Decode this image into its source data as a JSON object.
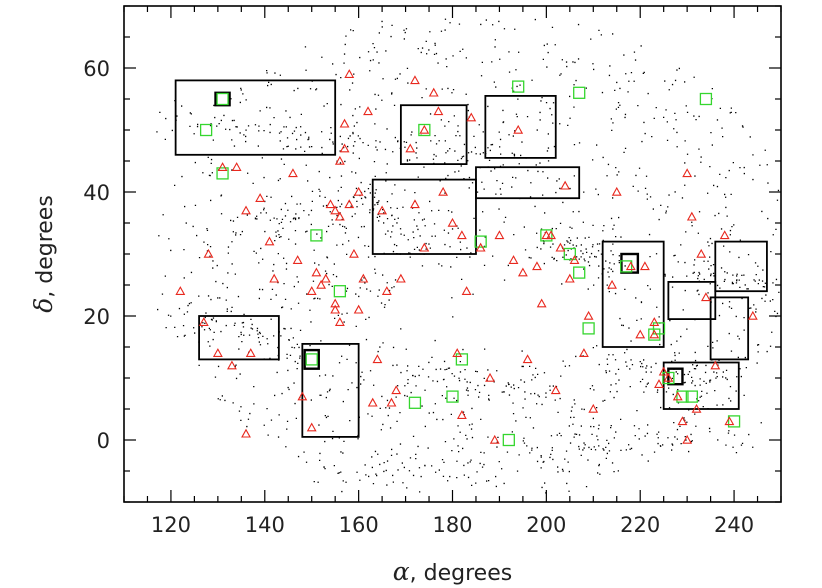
{
  "chart_data": {
    "type": "scatter",
    "xlabel_symbol": "α",
    "xlabel_unit": ", degrees",
    "ylabel_symbol": "δ",
    "ylabel_unit": ", degrees",
    "xlim": [
      110,
      250
    ],
    "ylim": [
      -10,
      70
    ],
    "xticks": [
      120,
      140,
      160,
      180,
      200,
      220,
      240
    ],
    "yticks": [
      0,
      20,
      40,
      60
    ],
    "grid": false,
    "colors": {
      "points": "#000000",
      "triangles": "#e8281e",
      "squares": "#35d62e",
      "boxes": "#000000"
    },
    "background_points": {
      "description_count": 9000,
      "footprint": "SDSS northern cap sky coverage (dense field of galaxies)"
    },
    "regions": [
      {
        "x": [
          121,
          155
        ],
        "y": [
          46,
          58
        ]
      },
      {
        "x": [
          169,
          183
        ],
        "y": [
          44.5,
          54
        ]
      },
      {
        "x": [
          187,
          202
        ],
        "y": [
          45.5,
          55.5
        ]
      },
      {
        "x": [
          163,
          185
        ],
        "y": [
          30,
          42
        ]
      },
      {
        "x": [
          185,
          207
        ],
        "y": [
          39,
          44
        ]
      },
      {
        "x": [
          126,
          143
        ],
        "y": [
          13,
          20
        ]
      },
      {
        "x": [
          148,
          160
        ],
        "y": [
          0.5,
          15.5
        ]
      },
      {
        "x": [
          212,
          225
        ],
        "y": [
          15,
          32
        ]
      },
      {
        "x": [
          226,
          236
        ],
        "y": [
          19.5,
          25.5
        ]
      },
      {
        "x": [
          236,
          247
        ],
        "y": [
          24,
          32
        ]
      },
      {
        "x": [
          235,
          243
        ],
        "y": [
          13,
          23
        ]
      },
      {
        "x": [
          225,
          241
        ],
        "y": [
          5,
          12.5
        ]
      },
      {
        "x": [
          216,
          219.5
        ],
        "y": [
          27,
          30
        ]
      },
      {
        "x": [
          148.5,
          151.5
        ],
        "y": [
          11.5,
          14.5
        ]
      },
      {
        "x": [
          129.5,
          132.5
        ],
        "y": [
          54,
          56
        ]
      },
      {
        "x": [
          226,
          229
        ],
        "y": [
          9,
          11.5
        ]
      }
    ],
    "triangles": [
      [
        122,
        24
      ],
      [
        127,
        19
      ],
      [
        128,
        30
      ],
      [
        130,
        14
      ],
      [
        131,
        44
      ],
      [
        134,
        44
      ],
      [
        136,
        1
      ],
      [
        136,
        37
      ],
      [
        137,
        14
      ],
      [
        139,
        39
      ],
      [
        141,
        32
      ],
      [
        147,
        29
      ],
      [
        148,
        7
      ],
      [
        150,
        2
      ],
      [
        150,
        24
      ],
      [
        151,
        27
      ],
      [
        152,
        25
      ],
      [
        153,
        26
      ],
      [
        154,
        38
      ],
      [
        155,
        21
      ],
      [
        155,
        37
      ],
      [
        156,
        19
      ],
      [
        156,
        36
      ],
      [
        156,
        45
      ],
      [
        157,
        47
      ],
      [
        157,
        51
      ],
      [
        158,
        59
      ],
      [
        159,
        30
      ],
      [
        160,
        21
      ],
      [
        160,
        40
      ],
      [
        161,
        26
      ],
      [
        163,
        6
      ],
      [
        164,
        13
      ],
      [
        165,
        37
      ],
      [
        166,
        24
      ],
      [
        167,
        6
      ],
      [
        168,
        8
      ],
      [
        169,
        26
      ],
      [
        171,
        47
      ],
      [
        172,
        38
      ],
      [
        172,
        58
      ],
      [
        174,
        50
      ],
      [
        174,
        31
      ],
      [
        176,
        56
      ],
      [
        177,
        53
      ],
      [
        178,
        40
      ],
      [
        180,
        35
      ],
      [
        181,
        14
      ],
      [
        182,
        33
      ],
      [
        183,
        24
      ],
      [
        184,
        52
      ],
      [
        186,
        31
      ],
      [
        188,
        10
      ],
      [
        189,
        0
      ],
      [
        190,
        33
      ],
      [
        193,
        29
      ],
      [
        195,
        27
      ],
      [
        196,
        13
      ],
      [
        198,
        28
      ],
      [
        200,
        33
      ],
      [
        201,
        33
      ],
      [
        202,
        8
      ],
      [
        203,
        31
      ],
      [
        204,
        41
      ],
      [
        205,
        26
      ],
      [
        206,
        29
      ],
      [
        209,
        20
      ],
      [
        210,
        5
      ],
      [
        214,
        25
      ],
      [
        218,
        28
      ],
      [
        220,
        17
      ],
      [
        221,
        28
      ],
      [
        223,
        17
      ],
      [
        223,
        19
      ],
      [
        224,
        9
      ],
      [
        225,
        11
      ],
      [
        226,
        10
      ],
      [
        228,
        7
      ],
      [
        229,
        3
      ],
      [
        230,
        0
      ],
      [
        230,
        43
      ],
      [
        231,
        36
      ],
      [
        232,
        5
      ],
      [
        233,
        30
      ],
      [
        234,
        23
      ],
      [
        236,
        12
      ],
      [
        238,
        33
      ],
      [
        239,
        3
      ],
      [
        133,
        12
      ],
      [
        146,
        43
      ],
      [
        142,
        26
      ],
      [
        162,
        53
      ],
      [
        194,
        50
      ],
      [
        199,
        22
      ],
      [
        208,
        14
      ],
      [
        215,
        40
      ],
      [
        244,
        20
      ],
      [
        158,
        38
      ],
      [
        155,
        22
      ],
      [
        182,
        4
      ]
    ],
    "squares": [
      [
        127.5,
        50
      ],
      [
        131,
        55
      ],
      [
        131,
        43
      ],
      [
        151,
        33
      ],
      [
        150,
        13
      ],
      [
        156,
        24
      ],
      [
        172,
        6
      ],
      [
        174,
        50
      ],
      [
        180,
        7
      ],
      [
        182,
        13
      ],
      [
        186,
        32
      ],
      [
        192,
        0
      ],
      [
        194,
        57
      ],
      [
        200,
        33
      ],
      [
        205,
        30
      ],
      [
        207,
        27
      ],
      [
        209,
        18
      ],
      [
        217,
        28
      ],
      [
        223,
        17
      ],
      [
        224,
        18
      ],
      [
        226,
        10
      ],
      [
        229,
        7
      ],
      [
        231,
        7
      ],
      [
        234,
        55
      ],
      [
        207,
        56
      ],
      [
        240,
        3
      ]
    ]
  }
}
